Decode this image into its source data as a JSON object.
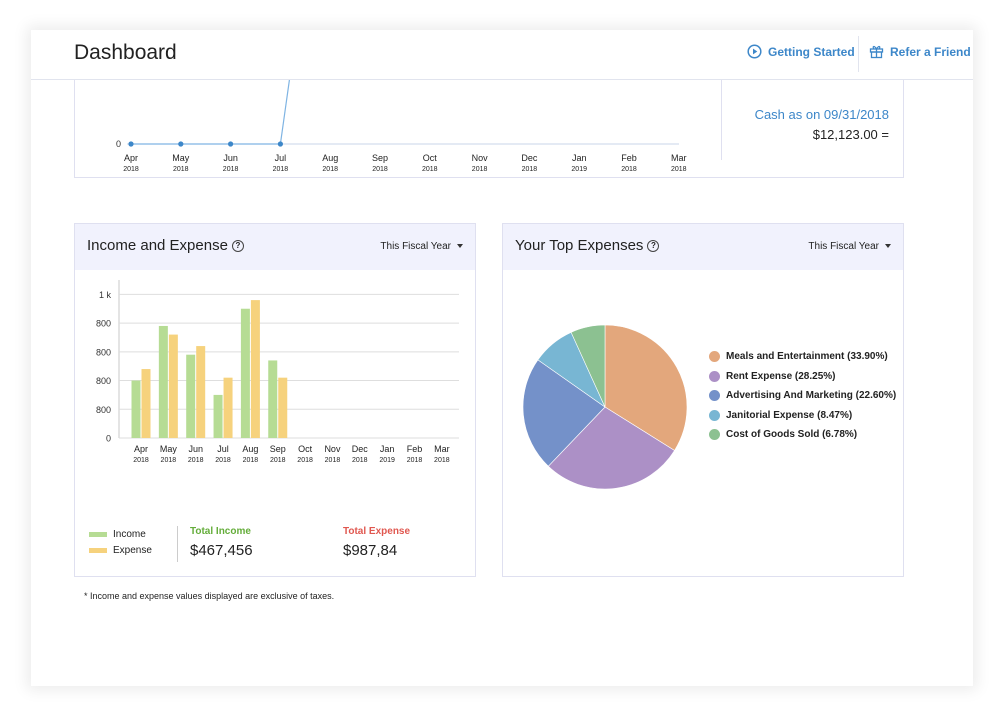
{
  "header": {
    "title": "Dashboard",
    "getting_started": "Getting Started",
    "refer_friend": "Refer a Friend"
  },
  "cash_flow": {
    "axis_zero": "0",
    "months": [
      {
        "m": "Apr",
        "y": "2018"
      },
      {
        "m": "May",
        "y": "2018"
      },
      {
        "m": "Jun",
        "y": "2018"
      },
      {
        "m": "Jul",
        "y": "2018"
      },
      {
        "m": "Aug",
        "y": "2018"
      },
      {
        "m": "Sep",
        "y": "2018"
      },
      {
        "m": "Oct",
        "y": "2018"
      },
      {
        "m": "Nov",
        "y": "2018"
      },
      {
        "m": "Dec",
        "y": "2018"
      },
      {
        "m": "Jan",
        "y": "2019"
      },
      {
        "m": "Feb",
        "y": "2018"
      },
      {
        "m": "Mar",
        "y": "2018"
      }
    ],
    "cash_label": "Cash as on 09/31/2018",
    "cash_value": "$12,123.00  ="
  },
  "income_expense": {
    "title": "Income and Expense",
    "help": "?",
    "period": "This Fiscal Year",
    "legend": {
      "income": "Income",
      "expense": "Expense"
    },
    "total_income_label": "Total Income",
    "total_income_value": "$467,456",
    "total_expense_label": "Total Expense",
    "total_expense_value": "$987,84"
  },
  "top_expenses": {
    "title": "Your Top Expenses",
    "help": "?",
    "period": "This Fiscal Year",
    "legend": [
      "Meals and Entertainment (33.90%)",
      "Rent Expense (28.25%)",
      "Advertising And Marketing (22.60%)",
      "Janitorial Expense (8.47%)",
      "Cost of Goods Sold (6.78%)"
    ]
  },
  "footnote": "* Income and expense values displayed are exclusive of taxes.",
  "colors": {
    "income": "#b6dc94",
    "expense": "#f6d27d",
    "accent": "#3d87c9",
    "income_label": "#64ad3a",
    "expense_label": "#e0574f"
  },
  "chart_data": [
    {
      "type": "line",
      "categories": [
        "Apr 2018",
        "May 2018",
        "Jun 2018",
        "Jul 2018",
        "Aug 2018",
        "Sep 2018",
        "Oct 2018",
        "Nov 2018",
        "Dec 2018",
        "Jan 2019",
        "Feb 2018",
        "Mar 2018"
      ],
      "series": [
        {
          "values": [
            0,
            0,
            0,
            0,
            null,
            null,
            null,
            null,
            null,
            null,
            null,
            null
          ]
        }
      ],
      "y_tick_labels": [
        "0"
      ],
      "grid": false
    },
    {
      "type": "bar",
      "categories": [
        "Apr 2018",
        "May 2018",
        "Jun 2018",
        "Jul 2018",
        "Aug 2018",
        "Sep 2018",
        "Oct 2018",
        "Nov 2018",
        "Dec 2018",
        "Jan 2019",
        "Feb 2018",
        "Mar 2018"
      ],
      "x_ticks": [
        {
          "m": "Apr",
          "y": "2018"
        },
        {
          "m": "May",
          "y": "2018"
        },
        {
          "m": "Jun",
          "y": "2018"
        },
        {
          "m": "Jul",
          "y": "2018"
        },
        {
          "m": "Aug",
          "y": "2018"
        },
        {
          "m": "Sep",
          "y": "2018"
        },
        {
          "m": "Oct",
          "y": "2018"
        },
        {
          "m": "Nov",
          "y": "2018"
        },
        {
          "m": "Dec",
          "y": "2018"
        },
        {
          "m": "Jan",
          "y": "2019"
        },
        {
          "m": "Feb",
          "y": "2018"
        },
        {
          "m": "Mar",
          "y": "2018"
        }
      ],
      "series": [
        {
          "name": "Income",
          "values": [
            2.0,
            3.9,
            2.9,
            1.5,
            4.5,
            2.7,
            null,
            null,
            null,
            null,
            null,
            null
          ]
        },
        {
          "name": "Expense",
          "values": [
            2.4,
            3.6,
            3.2,
            2.1,
            4.8,
            2.1,
            null,
            null,
            null,
            null,
            null,
            null
          ]
        }
      ],
      "y_tick_labels": [
        "0",
        "800",
        "800",
        "800",
        "800",
        "1 k"
      ],
      "ylim": [
        0,
        5.5
      ],
      "grid": true,
      "legend": "bottom-left"
    },
    {
      "type": "pie",
      "labels": [
        "Meals and Entertainment",
        "Rent Expense",
        "Advertising And Marketing",
        "Janitorial Expense",
        "Cost of Goods Sold"
      ],
      "values": [
        33.9,
        28.25,
        22.6,
        8.47,
        6.78
      ],
      "colors": [
        "#e3a77c",
        "#ac90c6",
        "#7491c9",
        "#78b6d3",
        "#8cc191"
      ],
      "legend": "right"
    }
  ]
}
